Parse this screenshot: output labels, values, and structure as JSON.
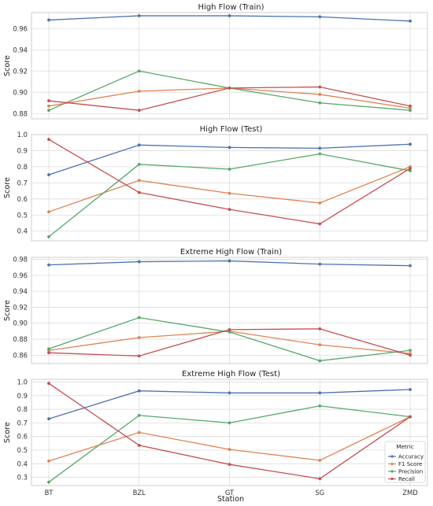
{
  "figure": {
    "x_label": "Station",
    "y_label": "Score",
    "legend": {
      "title": "Metric",
      "placement": "lower-right of last panel"
    }
  },
  "chart_data": [
    {
      "type": "line",
      "title": "High Flow (Train)",
      "categories": [
        "BT",
        "BZL",
        "GT",
        "SG",
        "ZMD"
      ],
      "ylim": [
        0.875,
        0.975
      ],
      "yticks": [
        0.88,
        0.9,
        0.92,
        0.94,
        0.96
      ],
      "ytick_labels": [
        "0.88",
        "0.90",
        "0.92",
        "0.94",
        "0.96"
      ],
      "show_x_tick_labels": false,
      "grid": true,
      "series": [
        {
          "name": "Accuracy",
          "color": "#4C72B0",
          "values": [
            0.968,
            0.972,
            0.972,
            0.971,
            0.967
          ]
        },
        {
          "name": "F1 Score",
          "color": "#DD8452",
          "values": [
            0.887,
            0.901,
            0.904,
            0.898,
            0.885
          ]
        },
        {
          "name": "Precision",
          "color": "#55A868",
          "values": [
            0.883,
            0.92,
            0.904,
            0.89,
            0.883
          ]
        },
        {
          "name": "Recall",
          "color": "#C44E52",
          "values": [
            0.892,
            0.883,
            0.904,
            0.905,
            0.887
          ]
        }
      ]
    },
    {
      "type": "line",
      "title": "High Flow (Test)",
      "categories": [
        "BT",
        "BZL",
        "GT",
        "SG",
        "ZMD"
      ],
      "ylim": [
        0.34,
        1.0
      ],
      "yticks": [
        0.4,
        0.5,
        0.6,
        0.7,
        0.8,
        0.9,
        1.0
      ],
      "ytick_labels": [
        "0.4",
        "0.5",
        "0.6",
        "0.7",
        "0.8",
        "0.9",
        "1.0"
      ],
      "show_x_tick_labels": false,
      "grid": true,
      "series": [
        {
          "name": "Accuracy",
          "color": "#4C72B0",
          "values": [
            0.75,
            0.935,
            0.92,
            0.915,
            0.94
          ]
        },
        {
          "name": "F1 Score",
          "color": "#DD8452",
          "values": [
            0.52,
            0.715,
            0.635,
            0.575,
            0.8
          ]
        },
        {
          "name": "Precision",
          "color": "#55A868",
          "values": [
            0.365,
            0.815,
            0.785,
            0.88,
            0.775
          ]
        },
        {
          "name": "Recall",
          "color": "#C44E52",
          "values": [
            0.97,
            0.64,
            0.535,
            0.445,
            0.79
          ]
        }
      ]
    },
    {
      "type": "line",
      "title": "Extreme High Flow (Train)",
      "categories": [
        "BT",
        "BZL",
        "GT",
        "SG",
        "ZMD"
      ],
      "ylim": [
        0.8495,
        0.9825
      ],
      "yticks": [
        0.86,
        0.88,
        0.9,
        0.92,
        0.94,
        0.96,
        0.98
      ],
      "ytick_labels": [
        "0.86",
        "0.88",
        "0.90",
        "0.92",
        "0.94",
        "0.96",
        "0.98"
      ],
      "show_x_tick_labels": false,
      "grid": true,
      "series": [
        {
          "name": "Accuracy",
          "color": "#4C72B0",
          "values": [
            0.973,
            0.977,
            0.978,
            0.974,
            0.972
          ]
        },
        {
          "name": "F1 Score",
          "color": "#DD8452",
          "values": [
            0.866,
            0.882,
            0.89,
            0.873,
            0.862
          ]
        },
        {
          "name": "Precision",
          "color": "#55A868",
          "values": [
            0.868,
            0.907,
            0.889,
            0.853,
            0.866
          ]
        },
        {
          "name": "Recall",
          "color": "#C44E52",
          "values": [
            0.863,
            0.859,
            0.892,
            0.893,
            0.86
          ]
        }
      ]
    },
    {
      "type": "line",
      "title": "Extreme High Flow (Test)",
      "categories": [
        "BT",
        "BZL",
        "GT",
        "SG",
        "ZMD"
      ],
      "ylim": [
        0.24,
        1.02
      ],
      "yticks": [
        0.3,
        0.4,
        0.5,
        0.6,
        0.7,
        0.8,
        0.9,
        1.0
      ],
      "ytick_labels": [
        "0.3",
        "0.4",
        "0.5",
        "0.6",
        "0.7",
        "0.8",
        "0.9",
        "1.0"
      ],
      "show_x_tick_labels": true,
      "grid": true,
      "series": [
        {
          "name": "Accuracy",
          "color": "#4C72B0",
          "values": [
            0.73,
            0.935,
            0.92,
            0.92,
            0.945
          ]
        },
        {
          "name": "F1 Score",
          "color": "#DD8452",
          "values": [
            0.42,
            0.63,
            0.505,
            0.425,
            0.745
          ]
        },
        {
          "name": "Precision",
          "color": "#55A868",
          "values": [
            0.265,
            0.755,
            0.7,
            0.825,
            0.745
          ]
        },
        {
          "name": "Recall",
          "color": "#C44E52",
          "values": [
            0.99,
            0.535,
            0.395,
            0.29,
            0.745
          ]
        }
      ]
    }
  ]
}
